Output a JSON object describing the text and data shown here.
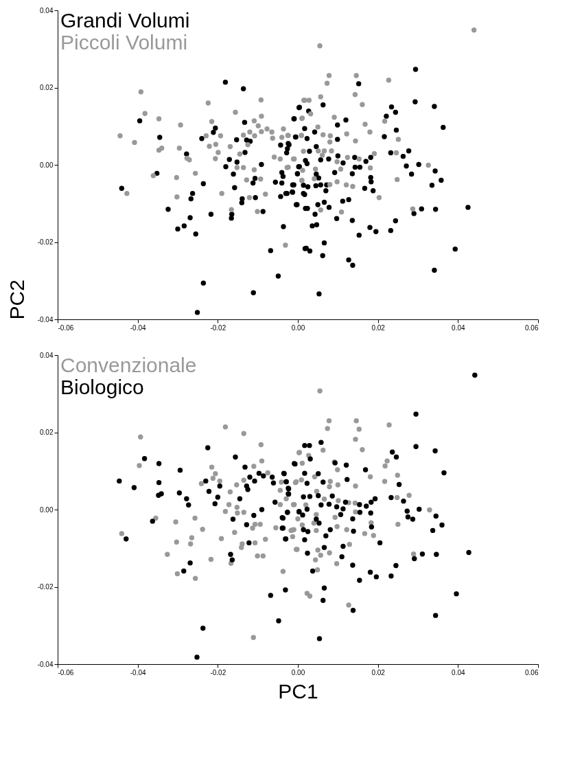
{
  "chart_data": [
    {
      "type": "scatter",
      "ylabel": "PC2",
      "legend": "top left",
      "marker": "circle",
      "grid": false,
      "xlim": [
        -0.06,
        0.06
      ],
      "ylim": [
        -0.04,
        0.04
      ],
      "xticks": [
        {
          "value": -0.06,
          "label": "-0.06"
        },
        {
          "value": -0.04,
          "label": "-0.04"
        },
        {
          "value": -0.02,
          "label": "-0.02"
        },
        {
          "value": 0,
          "label": "0.00"
        },
        {
          "value": 0.02,
          "label": "0.02"
        },
        {
          "value": 0.04,
          "label": "0.04"
        },
        {
          "value": 0.06,
          "label": "0.06"
        }
      ],
      "yticks": [
        {
          "value": -0.04,
          "label": "-0.04"
        },
        {
          "value": -0.02,
          "label": "-0.02"
        },
        {
          "value": 0,
          "label": "0.00"
        },
        {
          "value": 0.02,
          "label": "0.02"
        },
        {
          "value": 0.04,
          "label": "0.04"
        }
      ],
      "series": [
        {
          "name": "Grandi Volumi",
          "color": "#000000",
          "x": [
            -0.0181,
            -0.0136,
            -0.0395,
            0.0003,
            -0.001,
            -0.0133,
            -0.0206,
            -0.0211,
            -0.0345,
            -0.024,
            -0.0153,
            -0.0128,
            -0.0119,
            -0.0006,
            -0.0024,
            -0.0043,
            -0.0026,
            -0.0028,
            -0.0132,
            -0.0278,
            -0.0171,
            -0.0152,
            -0.018,
            -0.0091,
            0.0002,
            -0.0001,
            -0.004,
            -0.0037,
            -0.0352,
            -0.0161,
            -0.0107,
            -0.0112,
            -0.0056,
            -0.004,
            -0.0013,
            -0.0236,
            -0.0158,
            -0.003,
            -0.0014,
            -0.0043,
            0.0014,
            -0.044,
            -0.0263,
            -0.0267,
            -0.0106,
            -0.0139,
            -0.014,
            -0.0087,
            -0.0004,
            0.0019,
            -0.0324,
            -0.0217,
            -0.0165,
            -0.0166,
            -0.0269,
            -0.0284,
            -0.03,
            -0.0255,
            -0.0036,
            -0.0068,
            0.0018,
            -0.0049,
            -0.0236,
            -0.0111,
            -0.0251,
            0.0294,
            0.0152,
            0.0293,
            0.0341,
            0.0004,
            0.0063,
            0.0027,
            0.0234,
            0.0244,
            0.0221,
            -0.0009,
            0.012,
            0.0099,
            0.0363,
            0.0017,
            0.0246,
            0.0042,
            0.0216,
            -0.0005,
            0.0023,
            0.0099,
            -0.0022,
            0.0046,
            0.0029,
            0.0232,
            0.0277,
            0.0263,
            0.01,
            0.0142,
            0.0182,
            0.0057,
            0.0077,
            0.0019,
            0.0023,
            0.017,
            0.0113,
            0.0302,
            0.0143,
            0.0155,
            0.0004,
            0.0271,
            -0.0001,
            0.0046,
            0.0092,
            0.0136,
            0.0284,
            0.0343,
            0.0052,
            0.0182,
            0.0183,
            0.0358,
            -0.001,
            0.0014,
            0.0025,
            0.0045,
            0.0057,
            0.0072,
            0.007,
            0.0335,
            0.0167,
            0.0188,
            -0.0027,
            -0.0013,
            0.0017,
            0.0127,
            0.0112,
            -0.0002,
            0.0024,
            0.005,
            0.0066,
            0.0078,
            0.0309,
            0.0344,
            0.029,
            0.0425,
            0.0043,
            0.0097,
            0.0136,
            0.0244,
            0.0036,
            0.0047,
            0.018,
            0.0195,
            0.0232,
            0.0153,
            0.0066,
            0.0021,
            0.003,
            0.0062,
            0.0393,
            0.0127,
            0.0137,
            0.0341,
            0.0053
          ],
          "values": [
            0.0214,
            0.0197,
            0.0114,
            0.0148,
            0.0119,
            0.011,
            0.0095,
            0.0084,
            0.0071,
            0.0068,
            0.0065,
            0.0064,
            0.0061,
            0.0072,
            0.0055,
            0.0051,
            0.0042,
            0.0031,
            0.0032,
            0.0028,
            0.0014,
            0.0007,
            -0.0005,
            0.0001,
            -0.0005,
            -0.0023,
            -0.002,
            -0.003,
            -0.0022,
            -0.0024,
            -0.0035,
            -0.0047,
            -0.0045,
            -0.0047,
            -0.0052,
            -0.0049,
            -0.0059,
            -0.0074,
            -0.007,
            -0.0082,
            -0.0074,
            -0.0061,
            -0.0074,
            -0.0088,
            -0.0085,
            -0.0088,
            -0.0098,
            -0.0121,
            -0.0103,
            -0.0113,
            -0.0115,
            -0.0128,
            -0.0128,
            -0.0138,
            -0.0137,
            -0.0158,
            -0.0166,
            -0.0179,
            -0.016,
            -0.0222,
            -0.0217,
            -0.0288,
            -0.0306,
            -0.0331,
            -0.0382,
            0.0247,
            0.021,
            0.0163,
            0.0151,
            0.0149,
            0.0155,
            0.0139,
            0.015,
            0.0136,
            0.0126,
            0.0119,
            0.0116,
            0.0103,
            0.0097,
            0.0094,
            0.009,
            0.0085,
            0.0073,
            0.0072,
            0.0068,
            0.0066,
            0.0052,
            0.0047,
            0.0035,
            0.0031,
            0.0036,
            0.0022,
            0.0023,
            0.0019,
            0.0019,
            0.0013,
            0.0015,
            0.0011,
            0.0003,
            0.0009,
            0.0005,
            0.0001,
            -0.0006,
            -0.0006,
            -0.0005,
            -0.0003,
            -0.0023,
            -0.0024,
            -0.002,
            -0.0023,
            -0.0024,
            -0.0016,
            -0.0034,
            -0.0033,
            -0.0044,
            -0.004,
            -0.0052,
            -0.0053,
            -0.0057,
            -0.0054,
            -0.0052,
            -0.0052,
            -0.0067,
            -0.0053,
            -0.0061,
            -0.0067,
            -0.0074,
            -0.0071,
            -0.0077,
            -0.009,
            -0.0094,
            -0.0103,
            -0.0113,
            -0.0103,
            -0.0097,
            -0.011,
            -0.0114,
            -0.0115,
            -0.0126,
            -0.011,
            -0.0128,
            -0.0139,
            -0.0144,
            -0.0145,
            -0.0158,
            -0.0155,
            -0.0162,
            -0.0173,
            -0.017,
            -0.0182,
            -0.0202,
            -0.0216,
            -0.0223,
            -0.0235,
            -0.0218,
            -0.0246,
            -0.026,
            -0.0273,
            -0.0334
          ]
        },
        {
          "name": "Piccoli Volumi",
          "color": "#999999",
          "x": [
            -0.0392,
            -0.0382,
            -0.0444,
            -0.0408,
            -0.0347,
            -0.0347,
            -0.034,
            -0.0293,
            -0.0296,
            -0.0277,
            -0.0271,
            -0.0224,
            -0.0215,
            -0.0229,
            -0.0221,
            -0.0205,
            -0.0193,
            -0.0199,
            -0.0206,
            -0.0156,
            -0.0169,
            -0.0145,
            -0.0152,
            -0.0136,
            -0.0092,
            -0.0091,
            -0.0109,
            -0.0099,
            -0.0091,
            -0.0077,
            -0.0065,
            -0.0063,
            -0.012,
            -0.0108,
            -0.0125,
            -0.0136,
            -0.0036,
            -0.004,
            -0.0025,
            0.001,
            0.0015,
            0.0009,
            -0.0059,
            -0.0044,
            -0.0011,
            -0.0027,
            -0.0109,
            -0.0093,
            -0.0128,
            -0.0256,
            -0.0303,
            -0.0361,
            -0.0427,
            -0.0302,
            -0.019,
            -0.0121,
            -0.0081,
            -0.0101,
            -0.0166,
            0.001,
            -0.0031,
            0.044,
            0.0055,
            0.0078,
            0.0073,
            0.0146,
            0.0227,
            0.0143,
            0.0057,
            0.0017,
            0.0028,
            0.0161,
            0.0032,
            0.0011,
            0.0091,
            0.0217,
            0.0168,
            0.005,
            0.018,
            0.0122,
            0.0063,
            0.0009,
            0.0081,
            -0.0024,
            0.0251,
            0.0144,
            0.008,
            0.0014,
            0.0066,
            0.0084,
            0.0051,
            0.0061,
            0.0124,
            0.0191,
            0.0246,
            -0.0009,
            0.0153,
            0.0098,
            0.0326,
            -0.0024,
            0.0044,
            0.0107,
            0.0181,
            0.0012,
            0.0041,
            0.001,
            0.0248,
            0.008,
            0.0098,
            0.0121,
            0.0137,
            0.0203,
            0.0057,
            0.0109,
            0.0287
          ],
          "values": [
            0.0189,
            0.0133,
            0.0075,
            0.0058,
            0.0119,
            0.0038,
            0.0043,
            0.0103,
            0.0043,
            0.0017,
            0.0013,
            0.016,
            0.0112,
            0.0075,
            0.0048,
            0.0053,
            0.0075,
            0.0032,
            0.0016,
            0.0136,
            0.0047,
            0.0028,
            -0.0007,
            -0.0007,
            0.0168,
            0.0126,
            0.0114,
            0.0101,
            0.0086,
            0.0093,
            0.0085,
            0.0069,
            0.0085,
            0.0075,
            0.0052,
            0.0077,
            0.0093,
            0.0071,
            0.0076,
            0.012,
            0.0167,
            0.0076,
            0.002,
            0.0015,
            0.0015,
            -0.0007,
            -0.0013,
            -0.0037,
            -0.0039,
            -0.0022,
            -0.0033,
            -0.0028,
            -0.0074,
            -0.0083,
            -0.0074,
            -0.0085,
            -0.0076,
            -0.0121,
            -0.0116,
            -0.0041,
            -0.0208,
            0.0349,
            0.0308,
            0.0231,
            0.0211,
            0.0231,
            0.0219,
            0.0182,
            0.0176,
            0.0167,
            0.0167,
            0.0156,
            0.0132,
            0.0121,
            0.0123,
            0.0113,
            0.0105,
            0.0098,
            0.0085,
            0.008,
            0.0078,
            0.0076,
            0.0075,
            0.0076,
            0.0066,
            0.0062,
            0.0059,
            0.0035,
            0.0036,
            0.0036,
            0.0036,
            0.0025,
            0.0019,
            0.0029,
            0.0031,
            0.0015,
            0.0015,
            0.0008,
            -0.0001,
            -0.0006,
            -0.0011,
            -0.0011,
            -0.0008,
            -0.0014,
            -0.0036,
            -0.004,
            -0.0038,
            -0.0051,
            -0.0044,
            -0.0052,
            -0.0056,
            -0.0085,
            -0.0117,
            -0.0122,
            -0.0114
          ]
        }
      ]
    },
    {
      "type": "scatter",
      "xlabel": "PC1",
      "legend": "top left",
      "marker": "circle",
      "grid": false,
      "xlim": [
        -0.06,
        0.06
      ],
      "ylim": [
        -0.04,
        0.04
      ],
      "xticks": [
        {
          "value": -0.06,
          "label": "-0.06"
        },
        {
          "value": -0.04,
          "label": "-0.04"
        },
        {
          "value": -0.02,
          "label": "-0.02"
        },
        {
          "value": 0,
          "label": "0.00"
        },
        {
          "value": 0.02,
          "label": "0.02"
        },
        {
          "value": 0.04,
          "label": "0.04"
        },
        {
          "value": 0.06,
          "label": "0.06"
        }
      ],
      "yticks": [
        {
          "value": -0.04,
          "label": "-0.04"
        },
        {
          "value": -0.02,
          "label": "-0.02"
        },
        {
          "value": 0,
          "label": "0.00"
        },
        {
          "value": 0.02,
          "label": "0.02"
        },
        {
          "value": 0.04,
          "label": "0.04"
        }
      ],
      "series": [
        {
          "name": "Convenzionale",
          "color": "#999999",
          "x": [
            -0.0181,
            -0.0135,
            -0.0393,
            -0.0092,
            -0.0396,
            -0.009,
            -0.0215,
            -0.011,
            0.0003,
            -0.0206,
            -0.0212,
            -0.0241,
            -0.0195,
            -0.0169,
            -0.0135,
            -0.0153,
            -0.0075,
            -0.0041,
            -0.0006,
            -0.0172,
            -0.0181,
            -0.0152,
            -0.0151,
            -0.0135,
            -0.0044,
            -0.0029,
            -0.0044,
            -0.0011,
            -0.0055,
            -0.0017,
            -0.001,
            -0.0004,
            -0.0107,
            -0.0094,
            -0.0113,
            -0.0107,
            -0.0081,
            -0.0158,
            -0.0191,
            -0.0238,
            -0.0257,
            -0.0305,
            -0.0355,
            -0.044,
            -0.0303,
            -0.0265,
            -0.0268,
            -0.0326,
            -0.0301,
            -0.0256,
            -0.0217,
            -0.0167,
            -0.0141,
            -0.0139,
            -0.0101,
            -0.0087,
            -0.0037,
            -0.0111,
            0.0055,
            0.0078,
            0.0074,
            0.0146,
            0.0153,
            0.0228,
            0.0144,
            0.0161,
            0.0063,
            0.0004,
            0.0027,
            0.0011,
            0.0091,
            0.0099,
            0.0218,
            0.0223,
            0.0181,
            0.0249,
            0.0217,
            0.0042,
            -0.0004,
            0.0009,
            0.0081,
            0.01,
            0.0079,
            0.0144,
            0.0047,
            0.0066,
            0.0101,
            0.0278,
            0.0248,
            -0.0009,
            0.002,
            0.0143,
            0.0127,
            0.0144,
            0.0329,
            0.0046,
            0.0093,
            0.0,
            0.0011,
            0.004,
            0.0183,
            0.025,
            0.0098,
            0.0122,
            -0.0014,
            0.0046,
            -0.0013,
            0.0167,
            0.0189,
            0.0129,
            0.005,
            -0.0002,
            0.0057,
            0.0079,
            0.0044,
            0.0097,
            0.0049,
            0.0289,
            0.0023,
            0.003,
            0.0127
          ],
          "values": [
            0.0214,
            0.0197,
            0.0188,
            0.0168,
            0.0114,
            0.0126,
            0.011,
            0.0112,
            0.0147,
            0.0093,
            0.0081,
            0.0067,
            0.0074,
            0.0046,
            0.0076,
            0.0064,
            0.0095,
            0.0071,
            0.007,
            0.0013,
            -0.0005,
            0.0006,
            -0.0009,
            -0.0007,
            0.005,
            0.0028,
            0.0013,
            0.0013,
            -0.0047,
            -0.0054,
            -0.0052,
            -0.0103,
            -0.0038,
            -0.0038,
            -0.0048,
            -0.0086,
            -0.0077,
            -0.0059,
            -0.0075,
            -0.0051,
            -0.0022,
            -0.0032,
            -0.0022,
            -0.0062,
            -0.0084,
            -0.0073,
            -0.0089,
            -0.0116,
            -0.0166,
            -0.0178,
            -0.0129,
            -0.0139,
            -0.0098,
            -0.0089,
            -0.012,
            -0.012,
            -0.016,
            -0.0331,
            0.0307,
            0.023,
            0.021,
            0.023,
            0.0208,
            0.0219,
            0.0182,
            0.0155,
            0.0154,
            0.0148,
            0.014,
            0.012,
            0.0123,
            0.0103,
            0.0113,
            0.0126,
            0.0085,
            0.0089,
            0.0073,
            0.0085,
            0.0072,
            0.0077,
            0.0073,
            0.0064,
            0.0059,
            0.0061,
            0.0047,
            0.0027,
            0.0023,
            0.0037,
            0.0031,
            0.0013,
            0.0012,
            0.0017,
            0.0018,
            -0.0006,
            -0.0001,
            -0.0013,
            -0.002,
            -0.0024,
            -0.004,
            -0.0035,
            -0.0034,
            -0.0038,
            -0.0044,
            -0.0052,
            -0.0053,
            -0.0054,
            -0.007,
            -0.0062,
            -0.0067,
            -0.009,
            -0.0105,
            -0.0103,
            -0.0118,
            -0.0112,
            -0.013,
            -0.014,
            -0.0156,
            -0.0115,
            -0.0217,
            -0.0224,
            -0.0247
          ]
        },
        {
          "name": "Biologico",
          "color": "#000000",
          "x": [
            -0.0225,
            -0.0156,
            -0.0383,
            -0.0347,
            -0.0294,
            -0.0009,
            -0.0132,
            -0.0035,
            -0.0446,
            -0.0409,
            -0.0347,
            -0.0348,
            -0.0341,
            -0.0296,
            -0.0278,
            -0.0273,
            -0.023,
            -0.0222,
            -0.0195,
            -0.02,
            -0.0207,
            -0.012,
            -0.0108,
            -0.0097,
            -0.0086,
            -0.0064,
            -0.0061,
            -0.0128,
            -0.0125,
            -0.0145,
            -0.0029,
            -0.0024,
            -0.0024,
            -0.0057,
            -0.009,
            -0.011,
            -0.0162,
            -0.0128,
            -0.0026,
            -0.0039,
            -0.0039,
            -0.0031,
            0.0003,
            -0.0363,
            -0.0429,
            -0.0122,
            -0.0168,
            -0.0164,
            -0.0269,
            -0.0285,
            -0.0068,
            -0.0031,
            -0.0048,
            -0.0237,
            -0.0252,
            0.0442,
            0.0295,
            0.0295,
            0.0343,
            0.0058,
            0.0017,
            0.0029,
            0.0031,
            -0.0007,
            0.0093,
            0.0121,
            0.0236,
            0.0246,
            0.0365,
            0.0169,
            -0.0034,
            0.0017,
            0.0051,
            -0.0029,
            0.0023,
            0.0063,
            0.0123,
            0.0253,
            -0.0023,
            -0.0023,
            0.0014,
            0.003,
            0.0051,
            0.0086,
            0.0233,
            0.0264,
            0.0193,
            0.0183,
            0.0171,
            0.0119,
            0.0154,
            0.0058,
            0.0078,
            0.0097,
            0.0113,
            0.0023,
            0.0003,
            0.0012,
            -0.0026,
            0.0107,
            0.0155,
            0.0182,
            0.0273,
            0.0303,
            0.0137,
            -0.0037,
            0.0046,
            0.0053,
            0.0275,
            0.0287,
            0.0345,
            0.0184,
            -0.0037,
            0.0014,
            0.0025,
            0.0081,
            0.007,
            0.0139,
            0.036,
            0.0337,
            -0.003,
            0.0017,
            0.0205,
            0.0113,
            0.0066,
            0.0024,
            0.011,
            0.0311,
            0.0346,
            0.0291,
            0.0427,
            0.0037,
            0.0137,
            0.0181,
            0.0196,
            0.0233,
            0.0245,
            0.0154,
            0.0066,
            0.0063,
            0.0138,
            0.0396,
            0.0344,
            0.0054
          ],
          "values": [
            0.016,
            0.0136,
            0.0132,
            0.0119,
            0.0102,
            0.0119,
            0.011,
            0.0094,
            0.0074,
            0.0057,
            0.007,
            0.0037,
            0.0041,
            0.0043,
            0.0028,
            0.0012,
            0.0074,
            0.0047,
            0.0061,
            0.0032,
            0.0015,
            0.0084,
            0.0074,
            0.0094,
            0.0087,
            0.0084,
            0.0069,
            0.0061,
            0.0052,
            0.0028,
            0.0072,
            0.0055,
            0.0041,
            0.0019,
            0.0,
            -0.0015,
            -0.0025,
            -0.0039,
            -0.0007,
            -0.0021,
            -0.0048,
            -0.0076,
            -0.0006,
            -0.003,
            -0.0076,
            -0.0086,
            -0.0116,
            -0.013,
            -0.0138,
            -0.0159,
            -0.0222,
            -0.0208,
            -0.0288,
            -0.0307,
            -0.0382,
            0.0348,
            0.0247,
            0.0163,
            0.0152,
            0.0174,
            0.0166,
            0.0166,
            0.0131,
            0.0118,
            0.0121,
            0.0115,
            0.0149,
            0.0136,
            0.0095,
            0.0103,
            0.0093,
            0.0094,
            0.0093,
            0.0072,
            0.0068,
            0.0071,
            0.0078,
            0.0065,
            0.0054,
            0.004,
            0.0033,
            0.0034,
            0.0036,
            0.0035,
            0.0031,
            0.0022,
            0.0028,
            0.0019,
            0.0009,
            0.0019,
            0.0013,
            0.0012,
            0.0014,
            0.0007,
            0.0002,
            0.0001,
            -0.0005,
            -0.0014,
            -0.0007,
            -0.0013,
            -0.0007,
            -0.0009,
            -0.0004,
            0.0001,
            -0.0024,
            -0.0022,
            -0.0025,
            -0.0035,
            -0.0019,
            -0.0025,
            -0.0017,
            -0.0045,
            -0.0048,
            -0.0052,
            -0.0057,
            -0.0052,
            -0.0068,
            -0.0056,
            -0.004,
            -0.0054,
            -0.0076,
            -0.0078,
            -0.0086,
            -0.0095,
            -0.0098,
            -0.0113,
            -0.0122,
            -0.0115,
            -0.0116,
            -0.0127,
            -0.0111,
            -0.0159,
            -0.0144,
            -0.0162,
            -0.0174,
            -0.0172,
            -0.0145,
            -0.0183,
            -0.0203,
            -0.0235,
            -0.0261,
            -0.0218,
            -0.0274,
            -0.0334
          ]
        }
      ]
    }
  ]
}
